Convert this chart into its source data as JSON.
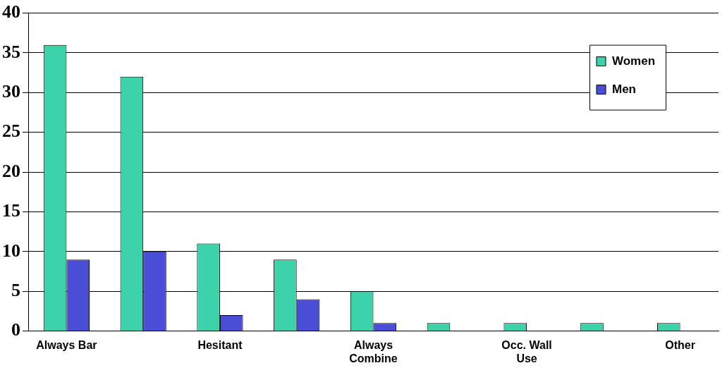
{
  "chart_data": {
    "type": "bar",
    "categories": [
      "Always Bar",
      null,
      "Hesitant",
      null,
      "Always Combine",
      null,
      "Occ. Wall Use",
      null,
      "Other"
    ],
    "series": [
      {
        "name": "Women",
        "color": "#3cd3aa",
        "values": [
          36,
          32,
          11,
          9,
          5,
          1,
          1,
          1,
          1
        ]
      },
      {
        "name": "Men",
        "color": "#4a4ed6",
        "values": [
          9,
          10,
          2,
          4,
          1,
          0,
          0,
          0,
          0
        ]
      }
    ],
    "ylim": [
      0,
      40
    ],
    "yticks": [
      0,
      5,
      10,
      15,
      20,
      25,
      30,
      35,
      40
    ],
    "grid": "y",
    "legend": "top right"
  }
}
